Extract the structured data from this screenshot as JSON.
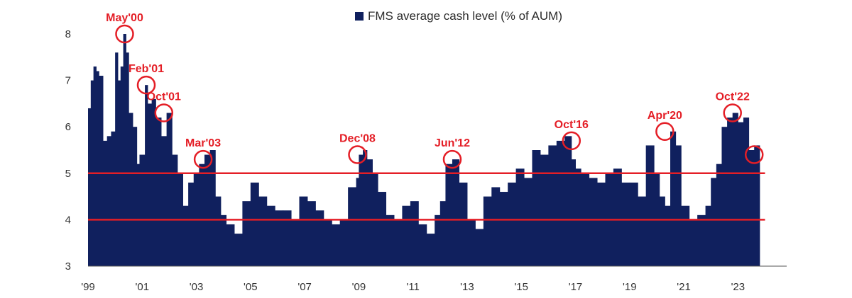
{
  "chart_data": {
    "type": "area",
    "legend": "FMS average cash level (% of AUM)",
    "legend_position": "top",
    "ylim": [
      3,
      8
    ],
    "yticks": [
      "3",
      "4",
      "5",
      "6",
      "7",
      "8"
    ],
    "xticks": [
      "'99",
      "'01",
      "'03",
      "'05",
      "'07",
      "'09",
      "'11",
      "'13",
      "'15",
      "'17",
      "'19",
      "'21",
      "'23"
    ],
    "xlim": [
      1999,
      2024.8
    ],
    "grid": false,
    "colors": {
      "series": "#10205e",
      "annotation": "#e41e26",
      "reference_lines": "#e41e26"
    },
    "reference_lines": [
      5,
      4
    ],
    "series": [
      {
        "x": [
          1999.0,
          1999.1,
          1999.2,
          1999.3,
          1999.4,
          1999.55,
          1999.7,
          1999.85,
          2000.0,
          2000.1,
          2000.2,
          2000.3,
          2000.4,
          2000.5,
          2000.65,
          2000.8,
          2000.9,
          2001.1,
          2001.2,
          2001.35,
          2001.5,
          2001.7,
          2001.9,
          2002.1,
          2002.3,
          2002.5,
          2002.7,
          2002.9,
          2003.1,
          2003.3,
          2003.5,
          2003.7,
          2003.9,
          2004.1,
          2004.4,
          2004.7,
          2005.0,
          2005.3,
          2005.6,
          2005.9,
          2006.2,
          2006.5,
          2006.8,
          2007.1,
          2007.4,
          2007.7,
          2008.0,
          2008.3,
          2008.6,
          2008.9,
          2009.0,
          2009.15,
          2009.3,
          2009.5,
          2009.7,
          2010.0,
          2010.3,
          2010.6,
          2010.9,
          2011.2,
          2011.5,
          2011.8,
          2012.0,
          2012.2,
          2012.45,
          2012.7,
          2013.0,
          2013.3,
          2013.6,
          2013.9,
          2014.2,
          2014.5,
          2014.8,
          2015.1,
          2015.4,
          2015.7,
          2016.0,
          2016.3,
          2016.6,
          2016.85,
          2017.0,
          2017.2,
          2017.5,
          2017.8,
          2018.1,
          2018.4,
          2018.7,
          2019.0,
          2019.3,
          2019.6,
          2019.9,
          2020.1,
          2020.3,
          2020.5,
          2020.7,
          2020.9,
          2021.2,
          2021.5,
          2021.8,
          2022.0,
          2022.2,
          2022.4,
          2022.6,
          2022.8,
          2023.0,
          2023.2,
          2023.4,
          2023.6
        ],
        "values": [
          6.4,
          7.0,
          7.3,
          7.2,
          7.1,
          5.7,
          5.8,
          5.9,
          7.6,
          7.0,
          7.3,
          8.0,
          7.6,
          6.3,
          6.0,
          5.2,
          5.4,
          6.9,
          6.5,
          6.6,
          6.2,
          5.8,
          6.3,
          5.4,
          5.0,
          4.3,
          4.8,
          5.0,
          5.2,
          5.4,
          5.5,
          4.5,
          4.1,
          3.9,
          3.7,
          4.4,
          4.8,
          4.5,
          4.3,
          4.2,
          4.2,
          4.0,
          4.5,
          4.4,
          4.2,
          4.0,
          3.9,
          4.0,
          4.7,
          4.9,
          5.4,
          5.5,
          5.3,
          5.0,
          4.6,
          4.1,
          4.0,
          4.3,
          4.4,
          3.9,
          3.7,
          4.1,
          4.4,
          5.2,
          5.3,
          4.8,
          4.0,
          3.8,
          4.5,
          4.7,
          4.6,
          4.8,
          5.1,
          4.9,
          5.5,
          5.4,
          5.6,
          5.7,
          5.8,
          5.3,
          5.1,
          5.0,
          4.9,
          4.8,
          5.0,
          5.1,
          4.8,
          4.8,
          4.5,
          5.6,
          5.0,
          4.5,
          4.3,
          5.9,
          5.6,
          4.3,
          4.0,
          4.1,
          4.3,
          4.9,
          5.2,
          6.0,
          6.2,
          6.3,
          6.1,
          6.2,
          5.5,
          5.6
        ]
      }
    ],
    "annotations": [
      {
        "text": "May'00",
        "x": 2000.35,
        "y": 8.0
      },
      {
        "text": "Feb'01",
        "x": 2001.15,
        "y": 6.9
      },
      {
        "text": "Oct'01",
        "x": 2001.8,
        "y": 6.3
      },
      {
        "text": "Mar'03",
        "x": 2003.25,
        "y": 5.3
      },
      {
        "text": "Dec'08",
        "x": 2008.95,
        "y": 5.4
      },
      {
        "text": "Jun'12",
        "x": 2012.45,
        "y": 5.3
      },
      {
        "text": "Oct'16",
        "x": 2016.85,
        "y": 5.7
      },
      {
        "text": "Apr'20",
        "x": 2020.3,
        "y": 5.9
      },
      {
        "text": "Oct'22",
        "x": 2022.8,
        "y": 6.3
      },
      {
        "text": "",
        "x": 2023.6,
        "y": 5.4
      }
    ]
  }
}
